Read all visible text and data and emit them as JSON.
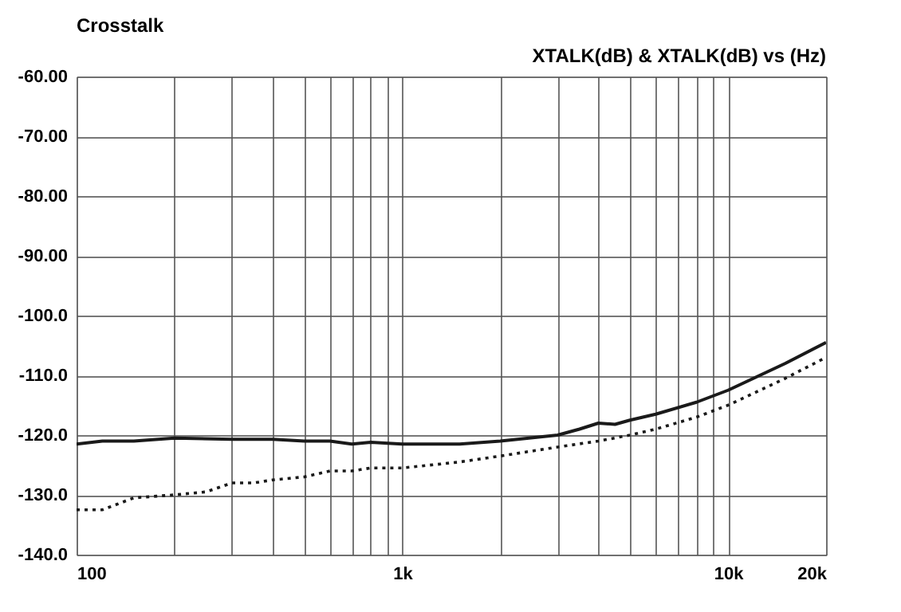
{
  "chart_data": {
    "type": "line",
    "title": "Crosstalk",
    "annotations": [
      "XTALK(dB)   &   XTALK(dB)   vs   (Hz)"
    ],
    "log": "x",
    "grid": true,
    "xlim": [
      100,
      20000
    ],
    "xticks": [
      100,
      {
        "value": 200,
        "label": null
      },
      {
        "value": 300,
        "label": null
      },
      {
        "value": 400,
        "label": null
      },
      {
        "value": 500,
        "label": null
      },
      {
        "value": 600,
        "label": null
      },
      {
        "value": 700,
        "label": null
      },
      {
        "value": 800,
        "label": null
      },
      {
        "value": 900,
        "label": null
      },
      {
        "value": 1000,
        "label": "1k"
      },
      {
        "value": 2000,
        "label": null
      },
      {
        "value": 3000,
        "label": null
      },
      {
        "value": 4000,
        "label": null
      },
      {
        "value": 5000,
        "label": null
      },
      {
        "value": 6000,
        "label": null
      },
      {
        "value": 7000,
        "label": null
      },
      {
        "value": 8000,
        "label": null
      },
      {
        "value": 9000,
        "label": null
      },
      {
        "value": 10000,
        "label": "10k"
      },
      {
        "value": 20000,
        "label": "20k"
      }
    ],
    "ylim": [
      -140,
      -60
    ],
    "yticks": [
      {
        "value": -60,
        "label": "-60.00"
      },
      {
        "value": -70,
        "label": "-70.00"
      },
      {
        "value": -80,
        "label": "-80.00"
      },
      {
        "value": -90,
        "label": "-90.00"
      },
      {
        "value": -100,
        "label": "-100.0"
      },
      {
        "value": -110,
        "label": "-110.0"
      },
      {
        "value": -120,
        "label": "-120.0"
      },
      {
        "value": -130,
        "label": "-130.0"
      },
      {
        "value": -140,
        "label": "-140.0"
      }
    ],
    "series": [
      {
        "color": "#1a1a1a",
        "line_style": "solid",
        "x": [
          100,
          120,
          150,
          200,
          300,
          400,
          500,
          600,
          700,
          800,
          1000,
          1500,
          2000,
          3000,
          3500,
          4000,
          4500,
          5000,
          6000,
          8000,
          10000,
          15000,
          20000
        ],
        "values": [
          -121.5,
          -121,
          -121,
          -120.5,
          -120.7,
          -120.7,
          -121,
          -121,
          -121.5,
          -121.2,
          -121.5,
          -121.5,
          -121,
          -120,
          -119,
          -118,
          -118.2,
          -117.5,
          -116.5,
          -114.5,
          -112.5,
          -108,
          -104.5
        ]
      },
      {
        "color": "#1a1a1a",
        "line_style": "dotted",
        "x": [
          100,
          120,
          150,
          200,
          250,
          300,
          350,
          400,
          500,
          600,
          700,
          800,
          1000,
          1500,
          2000,
          3000,
          4000,
          5000,
          6000,
          8000,
          10000,
          15000,
          20000
        ],
        "values": [
          -132.5,
          -132.5,
          -130.5,
          -130,
          -129.5,
          -128,
          -128,
          -127.5,
          -127,
          -126,
          -126,
          -125.5,
          -125.5,
          -124.5,
          -123.5,
          -122,
          -121,
          -120,
          -119,
          -117,
          -115,
          -110.5,
          -107
        ]
      }
    ]
  }
}
